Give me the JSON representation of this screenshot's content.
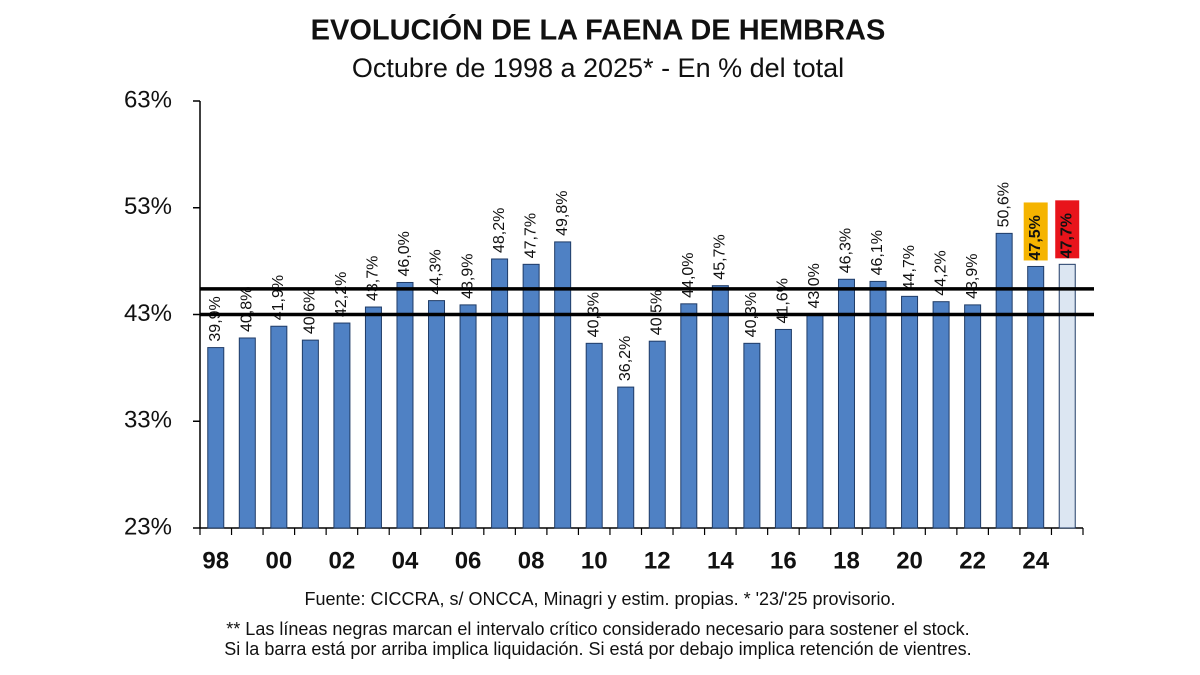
{
  "chart_data": {
    "type": "bar",
    "title": "EVOLUCIÓN DE LA FAENA DE HEMBRAS",
    "subtitle": "Octubre de 1998 a 2025* - En % del total",
    "categories": [
      "98",
      null,
      "00",
      null,
      "02",
      null,
      "04",
      null,
      "06",
      null,
      "08",
      null,
      "10",
      null,
      "12",
      null,
      "14",
      null,
      "16",
      null,
      "18",
      null,
      "20",
      null,
      "22",
      null,
      "24",
      null
    ],
    "values": [
      39.9,
      40.8,
      41.9,
      40.6,
      42.2,
      43.7,
      46.0,
      44.3,
      43.9,
      48.2,
      47.7,
      49.8,
      40.3,
      36.2,
      40.5,
      44.0,
      45.7,
      40.3,
      41.6,
      43.0,
      46.3,
      46.1,
      44.7,
      44.2,
      43.9,
      50.6,
      47.5,
      47.7
    ],
    "value_labels": [
      "39,9%",
      "40,8%",
      "41,9%",
      "40,6%",
      "42,2%",
      "43,7%",
      "46,0%",
      "44,3%",
      "43,9%",
      "48,2%",
      "47,7%",
      "49,8%",
      "40,3%",
      "36,2%",
      "40,5%",
      "44,0%",
      "45,7%",
      "40,3%",
      "41,6%",
      "43,0%",
      "46,3%",
      "46,1%",
      "44,7%",
      "44,2%",
      "43,9%",
      "50,6%",
      "47,5%",
      "47,7%"
    ],
    "colors": [
      "#4f81c4",
      "#4f81c4",
      "#4f81c4",
      "#4f81c4",
      "#4f81c4",
      "#4f81c4",
      "#4f81c4",
      "#4f81c4",
      "#4f81c4",
      "#4f81c4",
      "#4f81c4",
      "#4f81c4",
      "#4f81c4",
      "#4f81c4",
      "#4f81c4",
      "#4f81c4",
      "#4f81c4",
      "#4f81c4",
      "#4f81c4",
      "#4f81c4",
      "#4f81c4",
      "#4f81c4",
      "#4f81c4",
      "#4f81c4",
      "#4f81c4",
      "#4f81c4",
      "#4f81c4",
      "#dce6f2"
    ],
    "value_label_backgrounds": [
      null,
      null,
      null,
      null,
      null,
      null,
      null,
      null,
      null,
      null,
      null,
      null,
      null,
      null,
      null,
      null,
      null,
      null,
      null,
      null,
      null,
      null,
      null,
      null,
      null,
      null,
      "#f5b400",
      "#e8141b"
    ],
    "reference_lines": [
      43,
      45.4
    ],
    "ylim": [
      23,
      63
    ],
    "yticks": [
      {
        "value": 23,
        "label": "23%"
      },
      {
        "value": 33,
        "label": "33%"
      },
      {
        "value": 43,
        "label": "43%"
      },
      {
        "value": 53,
        "label": "53%"
      },
      {
        "value": 63,
        "label": "63%"
      }
    ],
    "grid": false,
    "source": "Fuente: CICCRA, s/ ONCCA, Minagri y estim. propias. * '23/'25  provisorio.",
    "notes": [
      "** Las líneas negras marcan el intervalo crítico considerado necesario para sostener el stock.",
      "Si la barra está por arriba implica liquidación. Si está por debajo implica retención de vientres."
    ]
  }
}
